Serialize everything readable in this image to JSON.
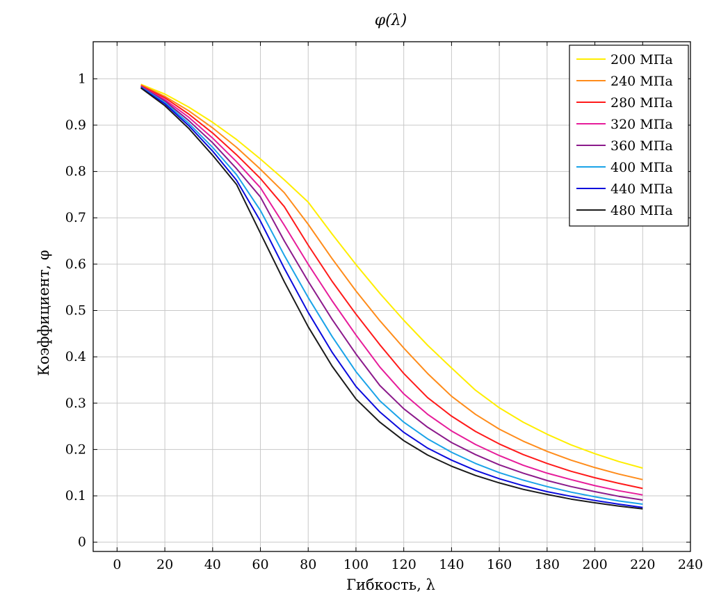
{
  "chart_data": {
    "type": "line",
    "title": "φ(λ)",
    "xlabel": "Гибкость, λ",
    "ylabel": "Коэффициент, φ",
    "xlim": [
      -10,
      240
    ],
    "ylim": [
      -0.02,
      1.08
    ],
    "xticks": [
      0,
      20,
      40,
      60,
      80,
      100,
      120,
      140,
      160,
      180,
      200,
      220,
      240
    ],
    "yticks": [
      0,
      0.1,
      0.2,
      0.3,
      0.4,
      0.5,
      0.6,
      0.7,
      0.8,
      0.9,
      1
    ],
    "grid": true,
    "legend_position": "top-right",
    "x": [
      10,
      20,
      30,
      40,
      50,
      60,
      70,
      80,
      90,
      100,
      110,
      120,
      130,
      140,
      150,
      160,
      170,
      180,
      190,
      200,
      210,
      220
    ],
    "series": [
      {
        "name": "200 МПа",
        "color": "#ffee00",
        "values": [
          0.988,
          0.967,
          0.939,
          0.906,
          0.869,
          0.827,
          0.782,
          0.734,
          0.665,
          0.599,
          0.537,
          0.479,
          0.425,
          0.376,
          0.328,
          0.29,
          0.259,
          0.233,
          0.21,
          0.191,
          0.174,
          0.16
        ]
      },
      {
        "name": "240 МПа",
        "color": "#ff8c1a",
        "values": [
          0.987,
          0.962,
          0.931,
          0.894,
          0.852,
          0.805,
          0.754,
          0.686,
          0.612,
          0.542,
          0.478,
          0.419,
          0.364,
          0.315,
          0.276,
          0.244,
          0.218,
          0.196,
          0.177,
          0.161,
          0.147,
          0.135
        ]
      },
      {
        "name": "280 МПа",
        "color": "#ff1a1a",
        "values": [
          0.985,
          0.959,
          0.924,
          0.883,
          0.836,
          0.785,
          0.724,
          0.641,
          0.563,
          0.492,
          0.426,
          0.364,
          0.312,
          0.272,
          0.239,
          0.212,
          0.189,
          0.17,
          0.153,
          0.139,
          0.127,
          0.116
        ]
      },
      {
        "name": "320 МПа",
        "color": "#e61c9a",
        "values": [
          0.984,
          0.955,
          0.917,
          0.872,
          0.821,
          0.765,
          0.684,
          0.6,
          0.521,
          0.447,
          0.378,
          0.32,
          0.276,
          0.24,
          0.211,
          0.187,
          0.166,
          0.149,
          0.135,
          0.122,
          0.111,
          0.102
        ]
      },
      {
        "name": "360 МПа",
        "color": "#8b1a8b",
        "values": [
          0.983,
          0.952,
          0.91,
          0.862,
          0.806,
          0.745,
          0.65,
          0.563,
          0.481,
          0.406,
          0.338,
          0.288,
          0.248,
          0.215,
          0.189,
          0.167,
          0.149,
          0.133,
          0.12,
          0.109,
          0.099,
          0.091
        ]
      },
      {
        "name": "400 МПа",
        "color": "#1aa3e8",
        "values": [
          0.982,
          0.949,
          0.904,
          0.852,
          0.793,
          0.716,
          0.619,
          0.528,
          0.444,
          0.368,
          0.305,
          0.259,
          0.223,
          0.194,
          0.17,
          0.15,
          0.134,
          0.12,
          0.108,
          0.098,
          0.089,
          0.082
        ]
      },
      {
        "name": "440 МПа",
        "color": "#0a0adc",
        "values": [
          0.981,
          0.946,
          0.899,
          0.844,
          0.781,
          0.693,
          0.591,
          0.496,
          0.41,
          0.336,
          0.281,
          0.237,
          0.203,
          0.177,
          0.155,
          0.137,
          0.122,
          0.109,
          0.099,
          0.09,
          0.082,
          0.075
        ]
      },
      {
        "name": "480 МПа",
        "color": "#1a1a1a",
        "values": [
          0.98,
          0.942,
          0.893,
          0.835,
          0.772,
          0.667,
          0.562,
          0.465,
          0.38,
          0.309,
          0.259,
          0.219,
          0.188,
          0.164,
          0.144,
          0.128,
          0.114,
          0.103,
          0.093,
          0.085,
          0.078,
          0.072
        ]
      }
    ]
  }
}
